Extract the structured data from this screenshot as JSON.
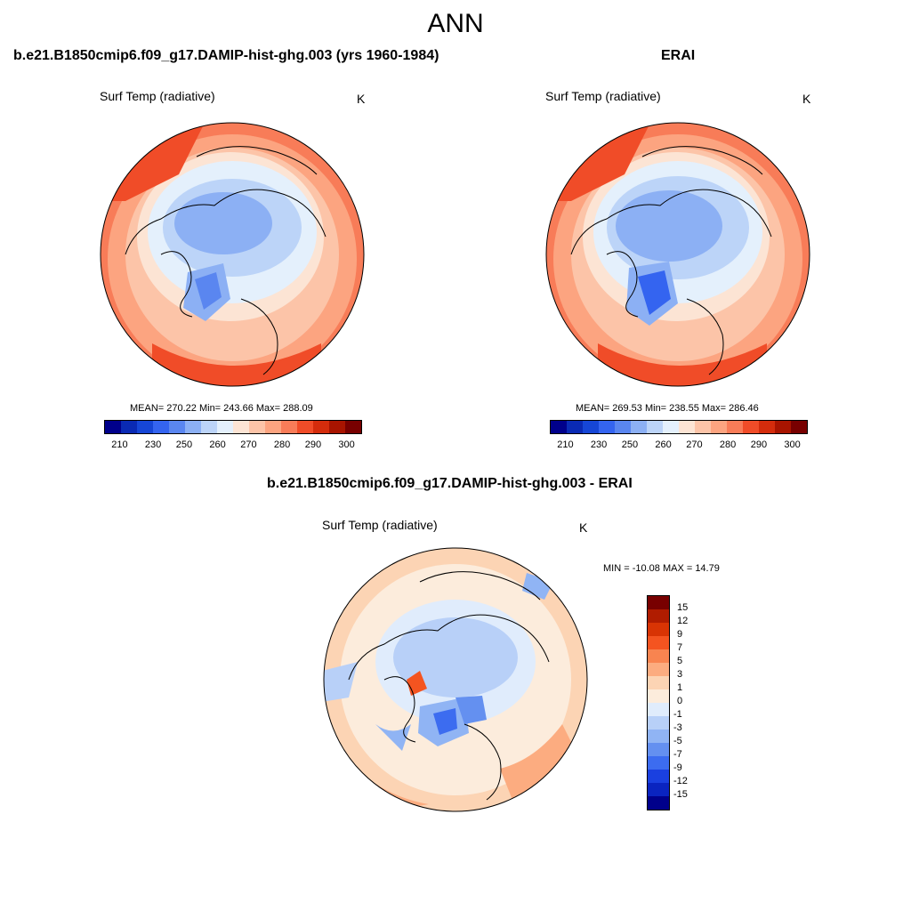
{
  "figure": {
    "season": "ANN",
    "field": "Surf Temp (radiative)",
    "units": "K"
  },
  "panels": [
    {
      "title": "b.e21.B1850cmip6.f09_g17.DAMIP-hist-ghg.003 (yrs 1960-1984)",
      "stats": "MEAN= 270.22  Min= 243.66  Max= 288.09"
    },
    {
      "title": "ERAI",
      "stats": "MEAN= 269.53  Min= 238.55  Max= 286.46"
    },
    {
      "title": "b.e21.B1850cmip6.f09_g17.DAMIP-hist-ghg.003 - ERAI",
      "minmax": "MIN = -10.08 MAX =  14.79"
    }
  ],
  "abs_colorbar": {
    "colors": [
      "#00008b",
      "#0a2ab4",
      "#1646d6",
      "#3464f0",
      "#5a86f0",
      "#8cb0f4",
      "#bcd4f8",
      "#e4f0fc",
      "#fce4d4",
      "#fcc4a8",
      "#fca480",
      "#f87c58",
      "#f04c28",
      "#d42c0c",
      "#a81400",
      "#780000"
    ],
    "tick_labels": [
      "210",
      "230",
      "250",
      "260",
      "270",
      "280",
      "290",
      "300"
    ]
  },
  "diff_colorbar": {
    "colors": [
      "#780000",
      "#b01c00",
      "#d83404",
      "#f45420",
      "#f88450",
      "#fcac80",
      "#fcd4b4",
      "#fcecdc",
      "#e0ecfc",
      "#b8d0f8",
      "#90b4f4",
      "#6490f0",
      "#3c6cf0",
      "#1a40e0",
      "#0a24c0",
      "#00008b"
    ],
    "labels": [
      "15",
      "12",
      "9",
      "7",
      "5",
      "3",
      "1",
      "0",
      "-1",
      "-3",
      "-5",
      "-7",
      "-9",
      "-12",
      "-15"
    ]
  }
}
